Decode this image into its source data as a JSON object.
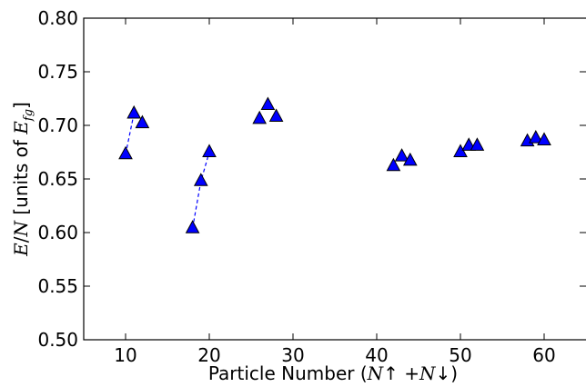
{
  "chart_data": {
    "type": "scatter",
    "xlabel": {
      "prefix": "Particle Number (",
      "n1": "N",
      "up": "↑",
      "plus": " +",
      "n2": "N",
      "down": "↓",
      "suffix": ")"
    },
    "ylabel": {
      "e": "E",
      "slash": "/",
      "n": "N",
      "units_prefix": " [units of ",
      "efg": "E",
      "fg": "fg",
      "units_suffix": "]"
    },
    "xlim": [
      5,
      65
    ],
    "ylim": [
      0.5,
      0.8
    ],
    "xticks": [
      10,
      20,
      30,
      40,
      50,
      60
    ],
    "xtick_labels": [
      "10",
      "20",
      "30",
      "40",
      "50",
      "60"
    ],
    "yticks": [
      0.5,
      0.55,
      0.6,
      0.65,
      0.7,
      0.75,
      0.8
    ],
    "ytick_labels": [
      "0.50",
      "0.55",
      "0.60",
      "0.65",
      "0.70",
      "0.75",
      "0.80"
    ],
    "grid": false,
    "marker": "triangle",
    "marker_color": "#0000ff",
    "line_color": "#0000ff",
    "points": [
      {
        "x": 10,
        "y": 0.673
      },
      {
        "x": 11,
        "y": 0.711
      },
      {
        "x": 12,
        "y": 0.702
      },
      {
        "x": 18,
        "y": 0.604
      },
      {
        "x": 19,
        "y": 0.648
      },
      {
        "x": 20,
        "y": 0.675
      },
      {
        "x": 26,
        "y": 0.706
      },
      {
        "x": 27,
        "y": 0.719
      },
      {
        "x": 28,
        "y": 0.708
      },
      {
        "x": 42,
        "y": 0.662
      },
      {
        "x": 43,
        "y": 0.671
      },
      {
        "x": 44,
        "y": 0.667
      },
      {
        "x": 50,
        "y": 0.675
      },
      {
        "x": 51,
        "y": 0.681
      },
      {
        "x": 52,
        "y": 0.681
      },
      {
        "x": 58,
        "y": 0.685
      },
      {
        "x": 59,
        "y": 0.688
      },
      {
        "x": 60,
        "y": 0.686
      }
    ],
    "dashed_segments": [
      {
        "x": [
          10,
          11
        ],
        "y": [
          0.673,
          0.711
        ]
      },
      {
        "x": [
          18,
          19,
          20
        ],
        "y": [
          0.604,
          0.648,
          0.675
        ]
      }
    ]
  }
}
